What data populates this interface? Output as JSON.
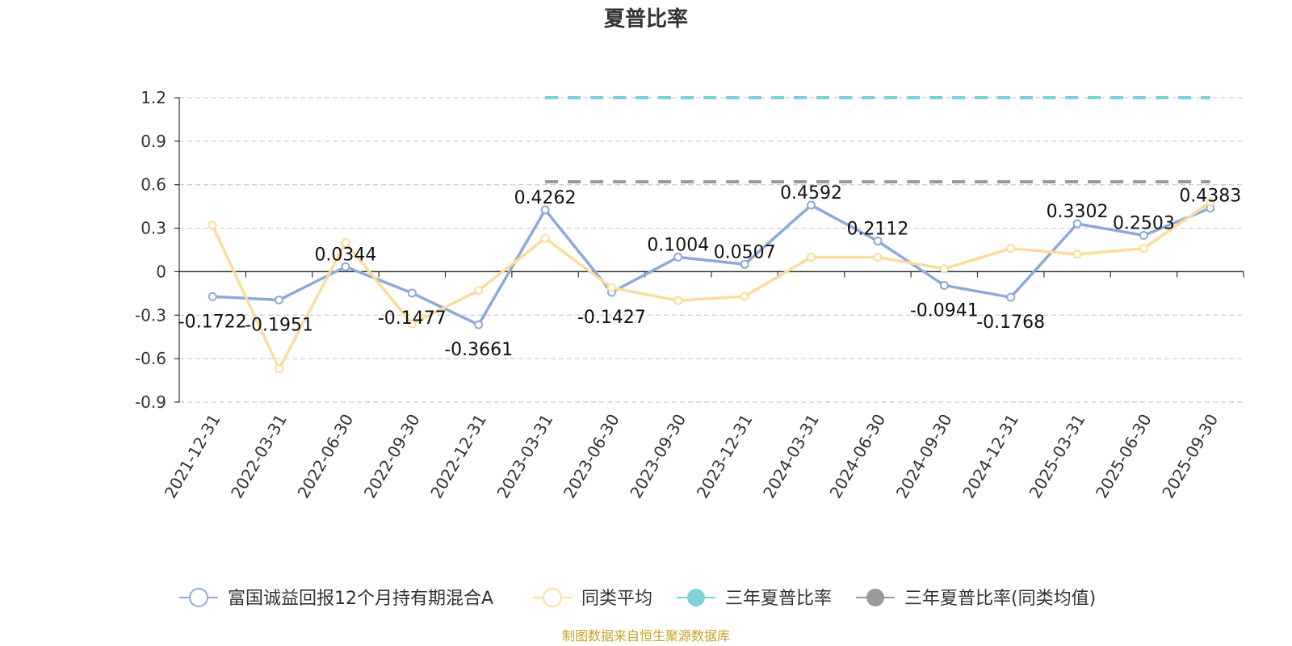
{
  "chart_data": {
    "type": "line",
    "title": "夏普比率",
    "xlabel": "",
    "ylabel": "",
    "ylim": [
      -0.9,
      1.2
    ],
    "yticks": [
      1.2,
      0.9,
      0.6,
      0.3,
      0,
      -0.3,
      -0.6,
      -0.9
    ],
    "yticks_labels": [
      "1.2",
      "0.9",
      "0.6",
      "0.3",
      "0",
      "-0.3",
      "-0.6",
      "-0.9"
    ],
    "categories": [
      "2021-12-31",
      "2022-03-31",
      "2022-06-30",
      "2022-09-30",
      "2022-12-31",
      "2023-03-31",
      "2023-06-30",
      "2023-09-30",
      "2023-12-31",
      "2024-03-31",
      "2024-06-30",
      "2024-09-30",
      "2024-12-31",
      "2025-03-31",
      "2025-06-30",
      "2025-09-30"
    ],
    "grid": true,
    "legend_position": "bottom",
    "series": [
      {
        "name": "富国诚益回报12个月持有期混合A",
        "color": "#8caad8",
        "marker": "circle",
        "values": [
          -0.1722,
          -0.1951,
          0.0344,
          -0.1477,
          -0.3661,
          0.4262,
          -0.1427,
          0.1004,
          0.0507,
          0.4592,
          0.2112,
          -0.0941,
          -0.1768,
          0.3302,
          0.2503,
          0.4383
        ],
        "labels": [
          "-0.1722",
          "-0.1951",
          "0.0344",
          "-0.1477",
          "-0.3661",
          "0.4262",
          "-0.1427",
          "0.1004",
          "0.0507",
          "0.4592",
          "0.2112",
          "-0.0941",
          "-0.1768",
          "0.3302",
          "0.2503",
          "0.4383"
        ]
      },
      {
        "name": "同类平均",
        "color": "#fcdc9c",
        "marker": "circle",
        "values": [
          0.32,
          -0.67,
          0.2,
          -0.36,
          -0.13,
          0.23,
          -0.11,
          -0.2,
          -0.17,
          0.1,
          0.1,
          0.02,
          0.16,
          0.12,
          0.16,
          0.48
        ]
      },
      {
        "name": "三年夏普比率",
        "color": "#7fd0d8",
        "marker": "filled-circle",
        "dashed": true,
        "values": [
          null,
          null,
          null,
          null,
          null,
          1.2,
          1.2,
          1.2,
          1.2,
          1.2,
          1.2,
          1.2,
          1.2,
          1.2,
          1.2,
          1.2
        ]
      },
      {
        "name": "三年夏普比率(同类均值)",
        "color": "#999999",
        "marker": "filled-circle",
        "dashed": true,
        "values": [
          null,
          null,
          null,
          null,
          null,
          0.62,
          0.62,
          0.62,
          0.62,
          0.62,
          0.62,
          0.62,
          0.62,
          0.62,
          0.62,
          0.62
        ]
      }
    ]
  },
  "source": "制图数据来自恒生聚源数据库"
}
